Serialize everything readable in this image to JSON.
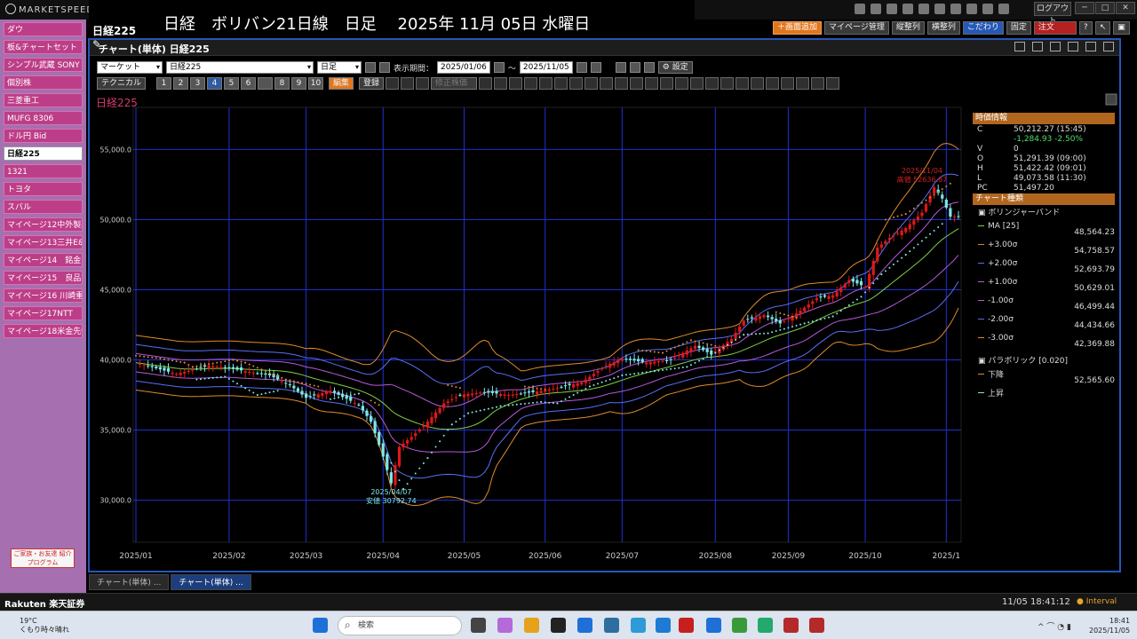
{
  "app": {
    "brand": "MARKETSPEEDⅡ",
    "overlay_title": "日経　ボリバン21日線　日足　 2025年 11月 05日 水曜日",
    "overlay_left": "日経225 ✎",
    "logout": "ログアウト"
  },
  "toolbar": [
    "＋画面追加",
    "マイページ管理",
    "縦整列",
    "横整列",
    "こだわり",
    "固定",
    "注文"
  ],
  "sidebar": [
    "ダウ",
    "板&チャートセット",
    "シンプル武蔵 SONY",
    "個別株",
    "三菱重工",
    "MUFG 8306",
    "ドル円 Bid",
    "日経225",
    "1321",
    "トヨタ",
    "スバル",
    "マイページ12中外製薬",
    "マイページ13三井E&S",
    "マイページ14　銘金15",
    "マイページ15　良品計",
    "マイページ16 川崎重工",
    "マイページ17NTT",
    "マイページ18米金先物"
  ],
  "sidebar_active": 7,
  "promo": "ご家族・お友達\n紹介プログラム",
  "window": {
    "title": "チャート(単体) 日経225",
    "market": "マーケット",
    "symbol": "日経225",
    "period": "日足",
    "range_label": "表示期間：",
    "date_from": "2025/01/06",
    "date_to": "2025/11/05",
    "tilde": "～",
    "settings": "設定"
  },
  "row2": {
    "technical": "テクニカル",
    "nums": [
      "1",
      "2",
      "3",
      "4",
      "5",
      "6",
      "",
      "8",
      "9",
      "10"
    ],
    "edit": "編集",
    "register": "登録",
    "adjust": "修正株価"
  },
  "chart_label": "日経225",
  "annotations": {
    "high_date": "2025/11/04",
    "high_val": "高値 52636.87",
    "low_date": "2025/04/07",
    "low_val": "安値 30792.74"
  },
  "info": {
    "head": "時価情報",
    "rows": [
      {
        "k": "C",
        "v": "50,212.27 (15:45)"
      },
      {
        "k": "",
        "v": "-1,284.93  -2.50%",
        "neg": true
      },
      {
        "k": "V",
        "v": "0"
      },
      {
        "k": "O",
        "v": "51,291.39 (09:00)"
      },
      {
        "k": "H",
        "v": "51,422.42 (09:01)"
      },
      {
        "k": "L",
        "v": "49,073.58 (11:30)"
      },
      {
        "k": "PC",
        "v": "51,497.20"
      }
    ],
    "type_head": "チャート種類",
    "bb_title": "ボリンジャーバンド",
    "bb": [
      {
        "name": "MA [25]",
        "val": "48,564.23",
        "color": "#7fd040"
      },
      {
        "name": "+3.00σ",
        "val": "54,758.57",
        "color": "#e08a2c"
      },
      {
        "name": "+2.00σ",
        "val": "52,693.79",
        "color": "#5b6ef5"
      },
      {
        "name": "+1.00σ",
        "val": "50,629.01",
        "color": "#b65ad8"
      },
      {
        "name": "-1.00σ",
        "val": "46,499.44",
        "color": "#b65ad8"
      },
      {
        "name": "-2.00σ",
        "val": "44,434.66",
        "color": "#5b6ef5"
      },
      {
        "name": "-3.00σ",
        "val": "42,369.88",
        "color": "#e08a2c"
      }
    ],
    "psar_title": "パラボリック [0.020]",
    "psar": [
      {
        "name": "下降",
        "val": "52,565.60",
        "color": "#e08a2c"
      },
      {
        "name": "上昇",
        "val": "",
        "color": "#7fe6e6"
      }
    ]
  },
  "tabs": [
    "チャート(単体) ...",
    "チャート(単体) ..."
  ],
  "statusbar": {
    "logo": "Rakuten 楽天証券",
    "time": "11/05 18:41:12",
    "interval": "Interval"
  },
  "taskbar": {
    "weather_temp": "19°C",
    "weather_text": "くもり時々晴れ",
    "search": "検索",
    "clock_time": "18:41",
    "clock_date": "2025/11/05"
  },
  "chart_data": {
    "type": "candlestick",
    "y_ticks": [
      "55,000.0",
      "50,000.0",
      "45,000.0",
      "40,000.0",
      "35,000.0",
      "30,000.0"
    ],
    "y_tick_values": [
      55000,
      50000,
      45000,
      40000,
      35000,
      30000
    ],
    "x_ticks": [
      "2025/01",
      "2025/02",
      "2025/03",
      "2025/04",
      "2025/05",
      "2025/06",
      "2025/07",
      "2025/08",
      "2025/09",
      "2025/10",
      "2025/1"
    ],
    "x_tick_days": [
      0,
      23,
      42,
      61,
      81,
      101,
      120,
      143,
      161,
      180,
      200
    ],
    "ylim": [
      27000,
      58000
    ],
    "total_days": 203,
    "close_path": [
      [
        0,
        39800
      ],
      [
        10,
        39000
      ],
      [
        18,
        39600
      ],
      [
        23,
        39400
      ],
      [
        33,
        38900
      ],
      [
        38,
        38200
      ],
      [
        42,
        37300
      ],
      [
        48,
        37800
      ],
      [
        55,
        36800
      ],
      [
        58,
        35600
      ],
      [
        61,
        33100
      ],
      [
        63,
        31200
      ],
      [
        65,
        33800
      ],
      [
        68,
        34500
      ],
      [
        72,
        35600
      ],
      [
        76,
        36900
      ],
      [
        80,
        37500
      ],
      [
        86,
        37700
      ],
      [
        92,
        37500
      ],
      [
        98,
        37700
      ],
      [
        104,
        38000
      ],
      [
        110,
        38400
      ],
      [
        116,
        39600
      ],
      [
        120,
        40100
      ],
      [
        126,
        39800
      ],
      [
        132,
        40000
      ],
      [
        138,
        41000
      ],
      [
        142,
        40400
      ],
      [
        147,
        41500
      ],
      [
        150,
        42800
      ],
      [
        155,
        43200
      ],
      [
        159,
        42600
      ],
      [
        164,
        43500
      ],
      [
        168,
        44400
      ],
      [
        172,
        44600
      ],
      [
        176,
        45700
      ],
      [
        180,
        45200
      ],
      [
        183,
        48000
      ],
      [
        186,
        48700
      ],
      [
        190,
        49400
      ],
      [
        194,
        50500
      ],
      [
        197,
        52300
      ],
      [
        199,
        51500
      ],
      [
        201,
        50210
      ]
    ],
    "psar_down": [
      [
        0,
        40300
      ],
      [
        6,
        40100
      ],
      [
        12,
        39800
      ],
      [
        14,
        39500
      ],
      [
        24,
        40000
      ],
      [
        27,
        39800
      ],
      [
        37,
        38600
      ],
      [
        42,
        38300
      ],
      [
        45,
        38100
      ],
      [
        58,
        37100
      ],
      [
        60,
        36800
      ],
      [
        77,
        38200
      ],
      [
        80,
        38000
      ],
      [
        96,
        38100
      ],
      [
        101,
        37900
      ],
      [
        124,
        40700
      ],
      [
        130,
        40500
      ],
      [
        137,
        41400
      ],
      [
        143,
        41000
      ],
      [
        158,
        43400
      ],
      [
        163,
        43000
      ],
      [
        185,
        50000
      ],
      [
        190,
        50400
      ],
      [
        201,
        52565
      ]
    ],
    "psar_up": [
      [
        15,
        38600
      ],
      [
        22,
        38800
      ],
      [
        30,
        37500
      ],
      [
        35,
        37800
      ],
      [
        48,
        37200
      ],
      [
        55,
        37600
      ],
      [
        66,
        30800
      ],
      [
        72,
        33000
      ],
      [
        78,
        35400
      ],
      [
        82,
        36200
      ],
      [
        90,
        36700
      ],
      [
        100,
        37000
      ],
      [
        104,
        36900
      ],
      [
        112,
        38100
      ],
      [
        120,
        38900
      ],
      [
        128,
        39200
      ],
      [
        136,
        39500
      ],
      [
        143,
        40500
      ],
      [
        150,
        41800
      ],
      [
        156,
        41900
      ],
      [
        165,
        42600
      ],
      [
        172,
        43100
      ],
      [
        179,
        44500
      ],
      [
        184,
        46100
      ],
      [
        190,
        47500
      ],
      [
        199,
        49700
      ]
    ],
    "legend": [
      "MA [25]",
      "+3.00σ",
      "+2.00σ",
      "+1.00σ",
      "-1.00σ",
      "-2.00σ",
      "-3.00σ",
      "下降",
      "上昇"
    ]
  }
}
